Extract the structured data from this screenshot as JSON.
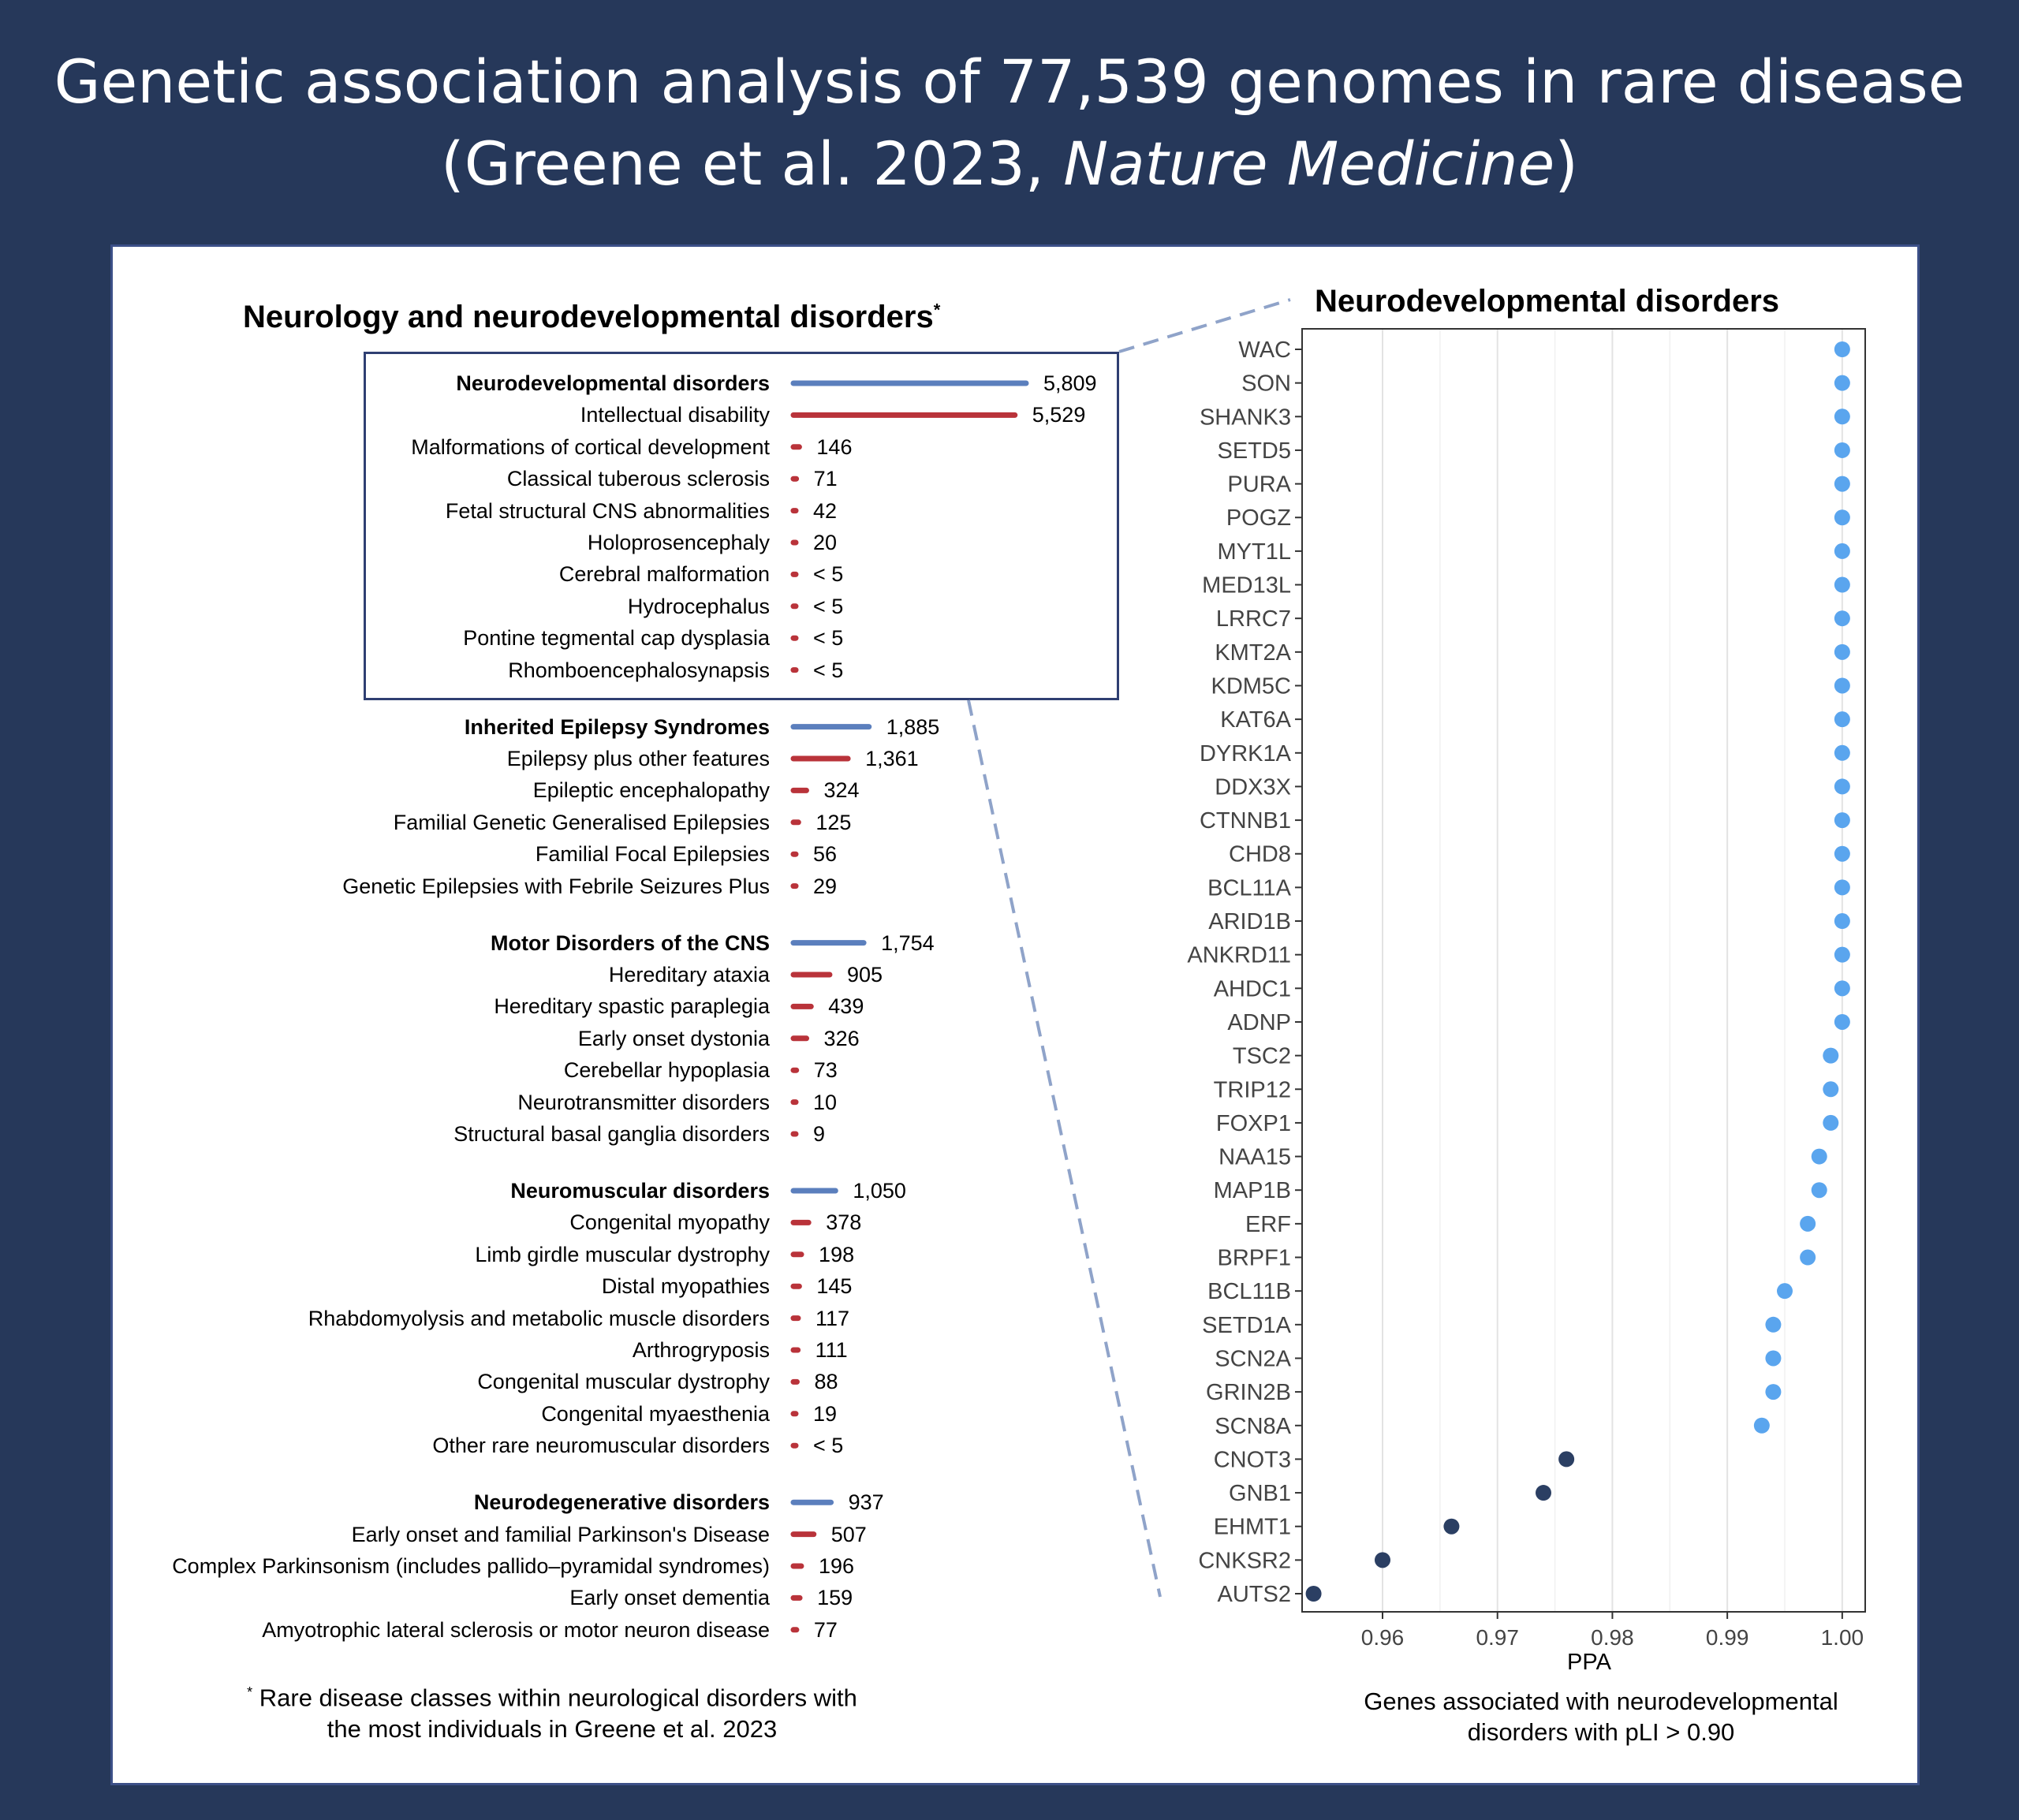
{
  "title": {
    "line1": "Genetic association analysis of 77,539 genomes in rare disease",
    "line2_prefix": "(Greene et al. 2023, ",
    "line2_journal": "Nature Medicine",
    "line2_suffix": ")"
  },
  "left_panel": {
    "title": "Neurology and neurodevelopmental disorders",
    "title_marker": "*",
    "footnote_marker": "*",
    "footnote_line1": "Rare disease classes within neurological disorders with",
    "footnote_line2": "the most individuals in Greene et al. 2023"
  },
  "right_panel": {
    "title": "Neurodevelopmental disorders",
    "caption_line1": "Genes associated with neurodevelopmental",
    "caption_line2": "disorders with pLI > 0.90"
  },
  "colors": {
    "background": "#26385a",
    "parent_bar": "#5b7fbd",
    "child_bar": "#b9333a",
    "dot_high": "#5aa5ee",
    "dot_low": "#2b3f63",
    "highlight_border": "#2f3f72",
    "dashed_connector": "#8fa3c9"
  },
  "chart_data": [
    {
      "type": "bar",
      "orientation": "horizontal",
      "groups": [
        {
          "name": "Neurodevelopmental disorders",
          "value": 5809,
          "label": "5,809",
          "highlighted": true,
          "children": [
            {
              "name": "Intellectual disability",
              "value": 5529,
              "label": "5,529"
            },
            {
              "name": "Malformations of cortical development",
              "value": 146,
              "label": "146"
            },
            {
              "name": "Classical tuberous sclerosis",
              "value": 71,
              "label": "71"
            },
            {
              "name": "Fetal structural CNS abnormalities",
              "value": 42,
              "label": "42"
            },
            {
              "name": "Holoprosencephaly",
              "value": 20,
              "label": "20"
            },
            {
              "name": "Cerebral malformation",
              "value": 4,
              "label": "< 5"
            },
            {
              "name": "Hydrocephalus",
              "value": 4,
              "label": "< 5"
            },
            {
              "name": "Pontine tegmental cap dysplasia",
              "value": 4,
              "label": "< 5"
            },
            {
              "name": "Rhomboencephalosynapsis",
              "value": 4,
              "label": "< 5"
            }
          ]
        },
        {
          "name": "Inherited Epilepsy Syndromes",
          "value": 1885,
          "label": "1,885",
          "children": [
            {
              "name": "Epilepsy plus other features",
              "value": 1361,
              "label": "1,361"
            },
            {
              "name": "Epileptic encephalopathy",
              "value": 324,
              "label": "324"
            },
            {
              "name": "Familial Genetic Generalised Epilepsies",
              "value": 125,
              "label": "125"
            },
            {
              "name": "Familial Focal Epilepsies",
              "value": 56,
              "label": "56"
            },
            {
              "name": "Genetic Epilepsies with Febrile Seizures Plus",
              "value": 29,
              "label": "29"
            }
          ]
        },
        {
          "name": "Motor Disorders of the CNS",
          "value": 1754,
          "label": "1,754",
          "children": [
            {
              "name": "Hereditary ataxia",
              "value": 905,
              "label": "905"
            },
            {
              "name": "Hereditary spastic paraplegia",
              "value": 439,
              "label": "439"
            },
            {
              "name": "Early onset dystonia",
              "value": 326,
              "label": "326"
            },
            {
              "name": "Cerebellar hypoplasia",
              "value": 73,
              "label": "73"
            },
            {
              "name": "Neurotransmitter disorders",
              "value": 10,
              "label": "10"
            },
            {
              "name": "Structural basal ganglia disorders",
              "value": 9,
              "label": "9"
            }
          ]
        },
        {
          "name": "Neuromuscular disorders",
          "value": 1050,
          "label": "1,050",
          "children": [
            {
              "name": "Congenital myopathy",
              "value": 378,
              "label": "378"
            },
            {
              "name": "Limb girdle muscular dystrophy",
              "value": 198,
              "label": "198"
            },
            {
              "name": "Distal myopathies",
              "value": 145,
              "label": "145"
            },
            {
              "name": "Rhabdomyolysis and metabolic muscle disorders",
              "value": 117,
              "label": "117"
            },
            {
              "name": "Arthrogryposis",
              "value": 111,
              "label": "111"
            },
            {
              "name": "Congenital muscular dystrophy",
              "value": 88,
              "label": "88"
            },
            {
              "name": "Congenital myaesthenia",
              "value": 19,
              "label": "19"
            },
            {
              "name": "Other rare neuromuscular disorders",
              "value": 4,
              "label": "< 5"
            }
          ]
        },
        {
          "name": "Neurodegenerative disorders",
          "value": 937,
          "label": "937",
          "children": [
            {
              "name": "Early onset and familial Parkinson's Disease",
              "value": 507,
              "label": "507"
            },
            {
              "name": "Complex Parkinsonism (includes pallido–pyramidal syndromes)",
              "value": 196,
              "label": "196"
            },
            {
              "name": "Early onset dementia",
              "value": 159,
              "label": "159"
            },
            {
              "name": "Amyotrophic lateral sclerosis or motor neuron disease",
              "value": 77,
              "label": "77"
            }
          ]
        }
      ]
    },
    {
      "type": "scatter",
      "title": "Neurodevelopmental disorders",
      "xlabel": "PPA",
      "ylabel": "",
      "xlim": [
        0.953,
        1.002
      ],
      "xticks": [
        0.96,
        0.97,
        0.98,
        0.99,
        1.0
      ],
      "xtick_labels": [
        "0.96",
        "0.97",
        "0.98",
        "0.99",
        "1.00"
      ],
      "grid": "vertical",
      "points": [
        {
          "gene": "WAC",
          "ppa": 1.0
        },
        {
          "gene": "SON",
          "ppa": 1.0
        },
        {
          "gene": "SHANK3",
          "ppa": 1.0
        },
        {
          "gene": "SETD5",
          "ppa": 1.0
        },
        {
          "gene": "PURA",
          "ppa": 1.0
        },
        {
          "gene": "POGZ",
          "ppa": 1.0
        },
        {
          "gene": "MYT1L",
          "ppa": 1.0
        },
        {
          "gene": "MED13L",
          "ppa": 1.0
        },
        {
          "gene": "LRRC7",
          "ppa": 1.0
        },
        {
          "gene": "KMT2A",
          "ppa": 1.0
        },
        {
          "gene": "KDM5C",
          "ppa": 1.0
        },
        {
          "gene": "KAT6A",
          "ppa": 1.0
        },
        {
          "gene": "DYRK1A",
          "ppa": 1.0
        },
        {
          "gene": "DDX3X",
          "ppa": 1.0
        },
        {
          "gene": "CTNNB1",
          "ppa": 1.0
        },
        {
          "gene": "CHD8",
          "ppa": 1.0
        },
        {
          "gene": "BCL11A",
          "ppa": 1.0
        },
        {
          "gene": "ARID1B",
          "ppa": 1.0
        },
        {
          "gene": "ANKRD11",
          "ppa": 1.0
        },
        {
          "gene": "AHDC1",
          "ppa": 1.0
        },
        {
          "gene": "ADNP",
          "ppa": 1.0
        },
        {
          "gene": "TSC2",
          "ppa": 0.999
        },
        {
          "gene": "TRIP12",
          "ppa": 0.999
        },
        {
          "gene": "FOXP1",
          "ppa": 0.999
        },
        {
          "gene": "NAA15",
          "ppa": 0.998
        },
        {
          "gene": "MAP1B",
          "ppa": 0.998
        },
        {
          "gene": "ERF",
          "ppa": 0.997
        },
        {
          "gene": "BRPF1",
          "ppa": 0.997
        },
        {
          "gene": "BCL11B",
          "ppa": 0.995
        },
        {
          "gene": "SETD1A",
          "ppa": 0.994
        },
        {
          "gene": "SCN2A",
          "ppa": 0.994
        },
        {
          "gene": "GRIN2B",
          "ppa": 0.994
        },
        {
          "gene": "SCN8A",
          "ppa": 0.993
        },
        {
          "gene": "CNOT3",
          "ppa": 0.976
        },
        {
          "gene": "GNB1",
          "ppa": 0.974
        },
        {
          "gene": "EHMT1",
          "ppa": 0.966
        },
        {
          "gene": "CNKSR2",
          "ppa": 0.96
        },
        {
          "gene": "AUTS2",
          "ppa": 0.954
        }
      ]
    }
  ]
}
